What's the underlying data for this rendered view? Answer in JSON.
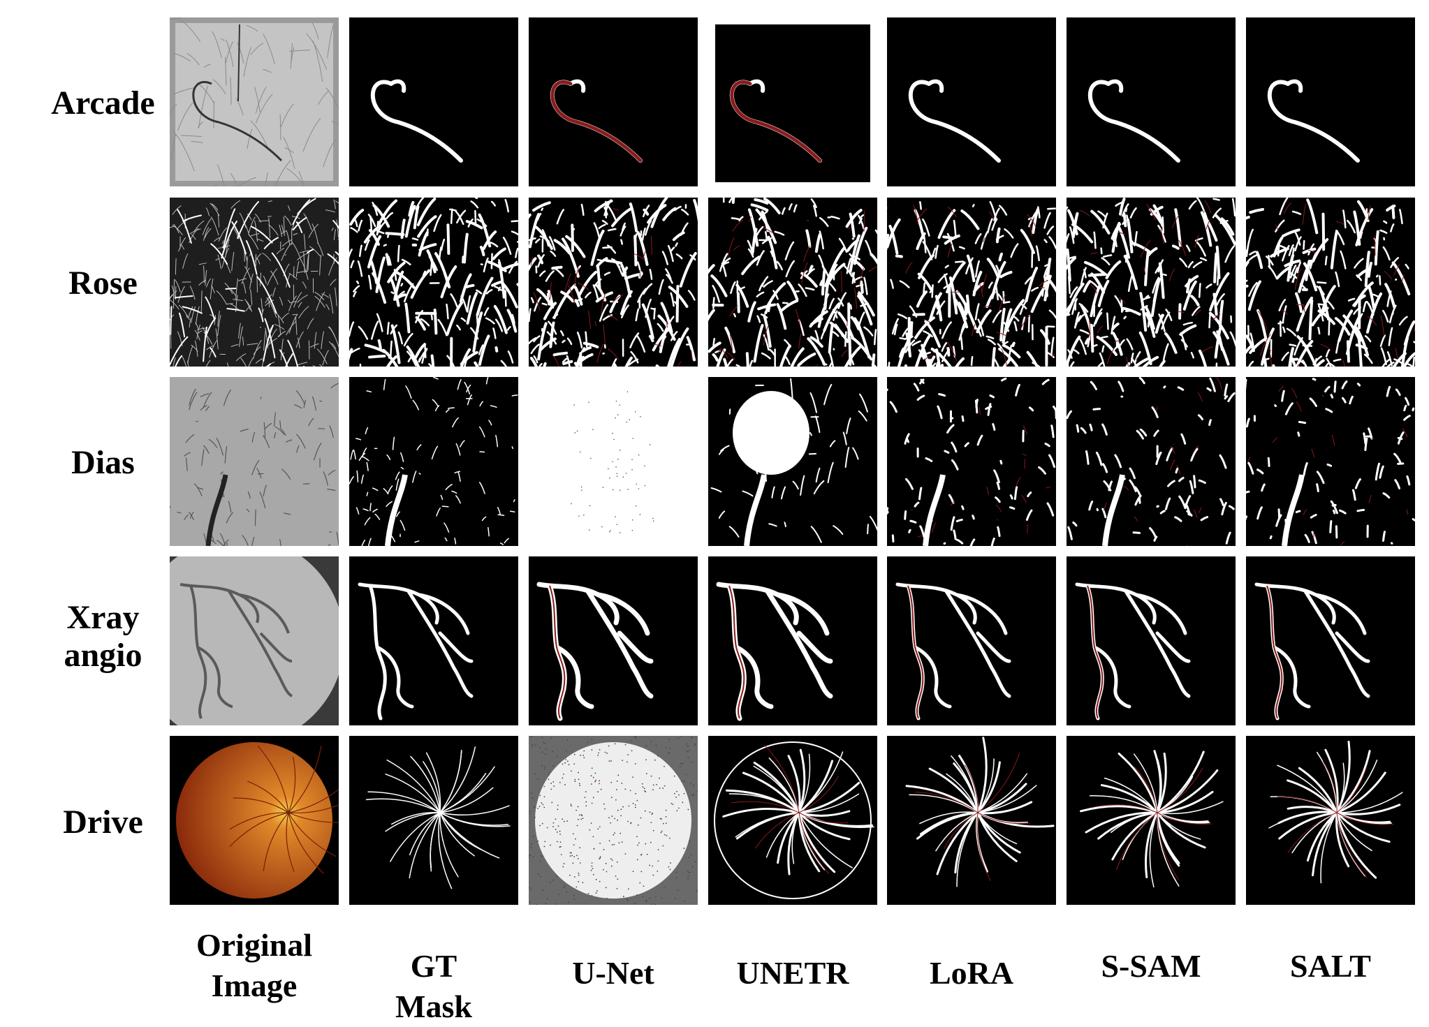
{
  "figure": {
    "rows": [
      "Arcade",
      "Rose",
      "Dias",
      "Xray\nangio",
      "Drive"
    ],
    "columns": [
      "Original\nImage",
      "GT\nMask",
      "U-Net",
      "UNETR",
      "LoRA",
      "S-SAM",
      "SALT"
    ]
  },
  "colors": {
    "mask_foreground": "#ffffff",
    "mask_background": "#000000",
    "error_overlay": "#8b1a1a",
    "xray_gray": "#b8b8b8",
    "fundus_orange": "#c8641e"
  }
}
